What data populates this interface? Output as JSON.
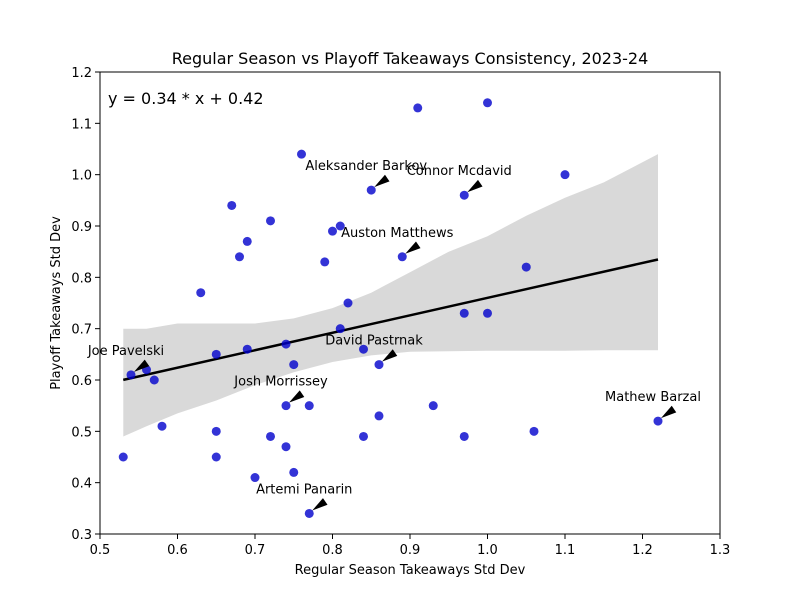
{
  "chart_data": {
    "type": "scatter",
    "title": "Regular Season vs Playoff Takeaways Consistency, 2023-24",
    "xlabel": "Regular Season Takeaways Std Dev",
    "ylabel": "Playoff Takeaways Std Dev",
    "xlim": [
      0.5,
      1.3
    ],
    "ylim": [
      0.3,
      1.2
    ],
    "xticks": [
      "0.5",
      "0.6",
      "0.7",
      "0.8",
      "0.9",
      "1.0",
      "1.1",
      "1.2",
      "1.3"
    ],
    "yticks": [
      "0.3",
      "0.4",
      "0.5",
      "0.6",
      "0.7",
      "0.8",
      "0.9",
      "1.0",
      "1.1",
      "1.2"
    ],
    "equation": "y = 0.34 * x + 0.42",
    "grid": false,
    "point_color": "#0000cc",
    "line_color": "#000000",
    "band_color": "#d9d9d9",
    "points": [
      {
        "x": 0.53,
        "y": 0.45
      },
      {
        "x": 0.54,
        "y": 0.61
      },
      {
        "x": 0.56,
        "y": 0.62
      },
      {
        "x": 0.57,
        "y": 0.6
      },
      {
        "x": 0.58,
        "y": 0.51
      },
      {
        "x": 0.63,
        "y": 0.77
      },
      {
        "x": 0.65,
        "y": 0.65
      },
      {
        "x": 0.65,
        "y": 0.5
      },
      {
        "x": 0.65,
        "y": 0.45
      },
      {
        "x": 0.67,
        "y": 0.94
      },
      {
        "x": 0.68,
        "y": 0.84
      },
      {
        "x": 0.69,
        "y": 0.87
      },
      {
        "x": 0.69,
        "y": 0.66
      },
      {
        "x": 0.7,
        "y": 0.41
      },
      {
        "x": 0.72,
        "y": 0.91
      },
      {
        "x": 0.72,
        "y": 0.49
      },
      {
        "x": 0.74,
        "y": 0.67
      },
      {
        "x": 0.74,
        "y": 0.55
      },
      {
        "x": 0.74,
        "y": 0.47
      },
      {
        "x": 0.75,
        "y": 0.63
      },
      {
        "x": 0.75,
        "y": 0.42
      },
      {
        "x": 0.76,
        "y": 1.04
      },
      {
        "x": 0.77,
        "y": 0.55
      },
      {
        "x": 0.77,
        "y": 0.34
      },
      {
        "x": 0.79,
        "y": 0.83
      },
      {
        "x": 0.8,
        "y": 0.89
      },
      {
        "x": 0.81,
        "y": 0.9
      },
      {
        "x": 0.81,
        "y": 0.7
      },
      {
        "x": 0.82,
        "y": 0.75
      },
      {
        "x": 0.84,
        "y": 0.66
      },
      {
        "x": 0.84,
        "y": 0.49
      },
      {
        "x": 0.85,
        "y": 0.97
      },
      {
        "x": 0.86,
        "y": 0.63
      },
      {
        "x": 0.86,
        "y": 0.53
      },
      {
        "x": 0.89,
        "y": 0.84
      },
      {
        "x": 0.91,
        "y": 1.13
      },
      {
        "x": 0.93,
        "y": 0.55
      },
      {
        "x": 0.97,
        "y": 0.96
      },
      {
        "x": 0.97,
        "y": 0.73
      },
      {
        "x": 0.97,
        "y": 0.49
      },
      {
        "x": 1.0,
        "y": 1.14
      },
      {
        "x": 1.0,
        "y": 0.73
      },
      {
        "x": 1.05,
        "y": 0.82
      },
      {
        "x": 1.06,
        "y": 0.5
      },
      {
        "x": 1.1,
        "y": 1.0
      },
      {
        "x": 1.22,
        "y": 0.52
      }
    ],
    "regression": {
      "x_start": 0.53,
      "x_end": 1.22,
      "slope": 0.34,
      "intercept": 0.42
    },
    "confidence_band": {
      "x": [
        0.53,
        0.56,
        0.6,
        0.65,
        0.7,
        0.75,
        0.8,
        0.85,
        0.9,
        0.95,
        1.0,
        1.05,
        1.1,
        1.15,
        1.22
      ],
      "upper": [
        0.7,
        0.7,
        0.71,
        0.71,
        0.71,
        0.72,
        0.74,
        0.77,
        0.81,
        0.85,
        0.88,
        0.92,
        0.955,
        0.985,
        1.04
      ],
      "lower": [
        0.49,
        0.51,
        0.535,
        0.56,
        0.59,
        0.615,
        0.635,
        0.648,
        0.655,
        0.656,
        0.657,
        0.657,
        0.657,
        0.658,
        0.658
      ]
    },
    "annotations": [
      {
        "text": "Aleksander Barkov",
        "px": 0.85,
        "py": 0.97
      },
      {
        "text": "Connor Mcdavid",
        "px": 0.97,
        "py": 0.96
      },
      {
        "text": "Auston Matthews",
        "px": 0.89,
        "py": 0.84
      },
      {
        "text": "David Pastrnak",
        "px": 0.86,
        "py": 0.63
      },
      {
        "text": "Joe Pavelski",
        "px": 0.54,
        "py": 0.61
      },
      {
        "text": "Josh Morrissey",
        "px": 0.74,
        "py": 0.55
      },
      {
        "text": "Mathew Barzal",
        "px": 1.22,
        "py": 0.52
      },
      {
        "text": "Artemi Panarin",
        "px": 0.77,
        "py": 0.34
      }
    ]
  }
}
